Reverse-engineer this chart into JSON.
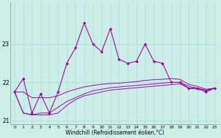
{
  "background_color": "#cceee8",
  "grid_color": "#aadddd",
  "line_color": "#990099",
  "x": [
    0,
    1,
    2,
    3,
    4,
    5,
    6,
    7,
    8,
    9,
    10,
    11,
    12,
    13,
    14,
    15,
    16,
    17,
    18,
    19,
    20,
    21,
    22,
    23
  ],
  "y_main": [
    21.75,
    22.1,
    21.2,
    21.7,
    21.2,
    21.75,
    22.5,
    22.9,
    23.55,
    23.0,
    22.8,
    23.4,
    22.6,
    22.5,
    22.55,
    23.0,
    22.55,
    22.5,
    22.0,
    22.0,
    21.85,
    21.85,
    21.75,
    21.85
  ],
  "y_line1": [
    21.75,
    21.2,
    21.15,
    21.15,
    21.15,
    21.2,
    21.4,
    21.55,
    21.65,
    21.7,
    21.75,
    21.8,
    21.82,
    21.84,
    21.86,
    21.88,
    21.9,
    21.92,
    21.94,
    21.96,
    21.85,
    21.82,
    21.78,
    21.85
  ],
  "y_line2": [
    21.75,
    21.2,
    21.15,
    21.2,
    21.2,
    21.35,
    21.5,
    21.6,
    21.7,
    21.78,
    21.82,
    21.86,
    21.88,
    21.9,
    21.92,
    21.94,
    21.96,
    21.98,
    22.0,
    22.0,
    21.9,
    21.85,
    21.8,
    21.85
  ],
  "y_line3": [
    21.75,
    21.75,
    21.6,
    21.6,
    21.6,
    21.65,
    21.75,
    21.82,
    21.88,
    21.92,
    21.95,
    21.97,
    21.98,
    22.0,
    22.02,
    22.05,
    22.07,
    22.08,
    22.1,
    22.08,
    21.95,
    21.9,
    21.82,
    21.85
  ],
  "ylim": [
    20.9,
    24.1
  ],
  "yticks": [
    21,
    22,
    23
  ],
  "xlim": [
    -0.5,
    23.5
  ],
  "xticks": [
    0,
    1,
    2,
    3,
    4,
    5,
    6,
    7,
    8,
    9,
    10,
    11,
    12,
    13,
    14,
    15,
    16,
    17,
    18,
    19,
    20,
    21,
    22,
    23
  ],
  "xlabel": "Windchill (Refroidissement éolien,°C)"
}
